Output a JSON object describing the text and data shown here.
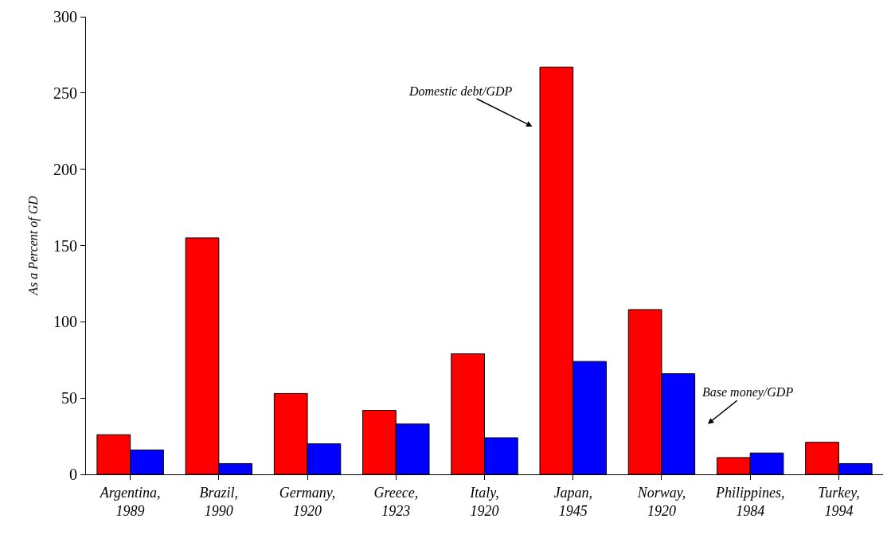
{
  "chart_data": {
    "type": "bar",
    "ylabel": "As a Percent of GD",
    "categories": [
      "Argentina,\n1989",
      "Brazil,\n1990",
      "Germany,\n1920",
      "Greece,\n1923",
      "Italy,\n1920",
      "Japan,\n1945",
      "Norway,\n1920",
      "Philippines,\n1984",
      "Turkey,\n1994"
    ],
    "series": [
      {
        "color": "#ff0000",
        "values": [
          26,
          155,
          53,
          42,
          79,
          267,
          108,
          11,
          21
        ]
      },
      {
        "color": "#0000ff",
        "values": [
          16,
          7,
          20,
          33,
          24,
          74,
          66,
          14,
          7
        ]
      }
    ],
    "ylim": [
      0,
      300
    ],
    "yticks": [
      0,
      50,
      100,
      150,
      200,
      250,
      300
    ],
    "annotations": [
      "Domestic debt/GDP",
      "Base money/GDP"
    ]
  }
}
